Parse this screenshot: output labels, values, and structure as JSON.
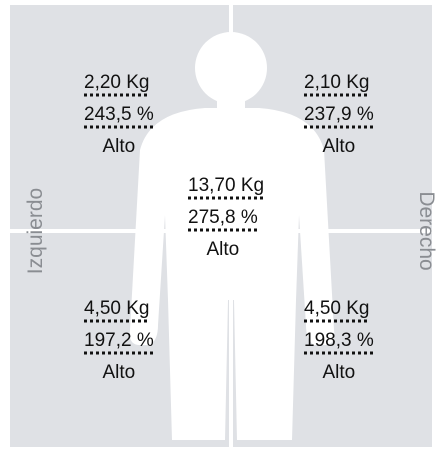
{
  "side_labels": {
    "left": "Izquierdo",
    "right": "Derecho"
  },
  "segments": {
    "left_arm": {
      "mass": "2,20 Kg",
      "percent": "243,5 %",
      "level": "Alto"
    },
    "right_arm": {
      "mass": "2,10 Kg",
      "percent": "237,9 %",
      "level": "Alto"
    },
    "trunk": {
      "mass": "13,70 Kg",
      "percent": "275,8 %",
      "level": "Alto"
    },
    "left_leg": {
      "mass": "4,50 Kg",
      "percent": "197,2 %",
      "level": "Alto"
    },
    "right_leg": {
      "mass": "4,50 Kg",
      "percent": "198,3 %",
      "level": "Alto"
    }
  }
}
